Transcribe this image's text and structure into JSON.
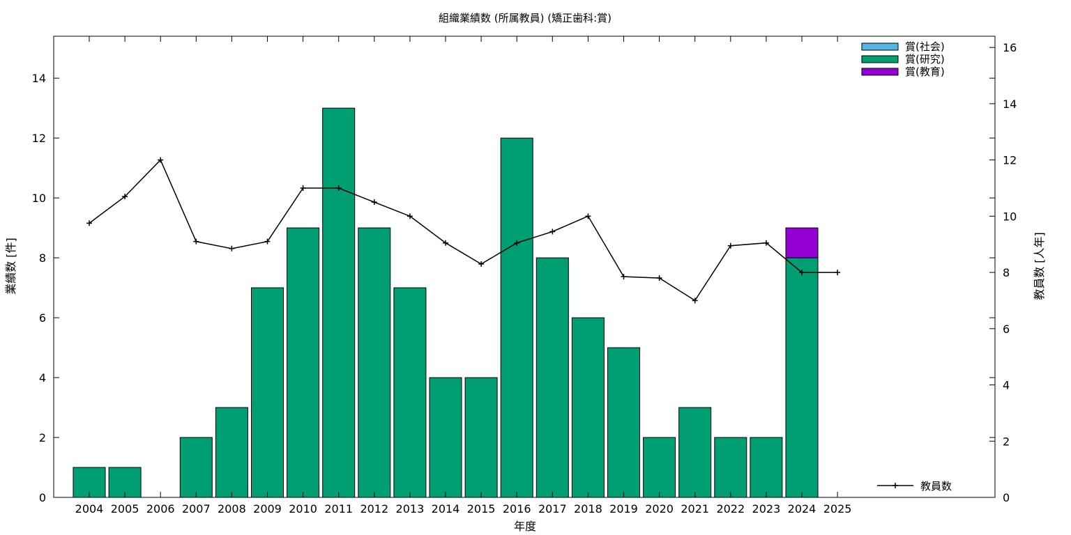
{
  "chart_data": {
    "type": "bar",
    "title": "組織業績数 (所属教員) (矯正歯科:賞)",
    "xlabel": "年度",
    "ylabel": "業績数 [件]",
    "y2label": "教員数 [人年]",
    "categories": [
      "2004",
      "2005",
      "2006",
      "2007",
      "2008",
      "2009",
      "2010",
      "2011",
      "2012",
      "2013",
      "2014",
      "2015",
      "2016",
      "2017",
      "2018",
      "2019",
      "2020",
      "2021",
      "2022",
      "2023",
      "2024",
      "2025"
    ],
    "ylim": [
      0,
      15.4
    ],
    "y2lim": [
      0,
      16.4
    ],
    "yticks": [
      0,
      2,
      4,
      6,
      8,
      10,
      12,
      14
    ],
    "y2ticks": [
      0,
      2,
      4,
      6,
      8,
      10,
      12,
      14,
      16
    ],
    "stacked": true,
    "series": [
      {
        "name": "賞(社会)",
        "color": "#56b4e9",
        "values": [
          0,
          0,
          0,
          0,
          0,
          0,
          0,
          0,
          0,
          0,
          0,
          0,
          0,
          0,
          0,
          0,
          0,
          0,
          0,
          0,
          0,
          0
        ]
      },
      {
        "name": "賞(研究)",
        "color": "#009e73",
        "values": [
          1,
          1,
          0,
          2,
          3,
          7,
          9,
          13,
          9,
          7,
          4,
          4,
          12,
          8,
          6,
          5,
          2,
          3,
          2,
          2,
          8,
          0
        ]
      },
      {
        "name": "賞(教育)",
        "color": "#9400d3",
        "values": [
          0,
          0,
          0,
          0,
          0,
          0,
          0,
          0,
          0,
          0,
          0,
          0,
          0,
          0,
          0,
          0,
          0,
          0,
          0,
          0,
          1,
          0
        ]
      }
    ],
    "line_series": {
      "name": "教員数",
      "color": "#000000",
      "axis": "right",
      "values": [
        9.75,
        10.7,
        12,
        9.1,
        8.85,
        9.1,
        11,
        11,
        10.5,
        10,
        9.05,
        8.3,
        9.05,
        9.45,
        10,
        7.85,
        7.8,
        7,
        8.95,
        9.05,
        8,
        8
      ]
    },
    "grid": false,
    "legend_position": "top-right"
  }
}
